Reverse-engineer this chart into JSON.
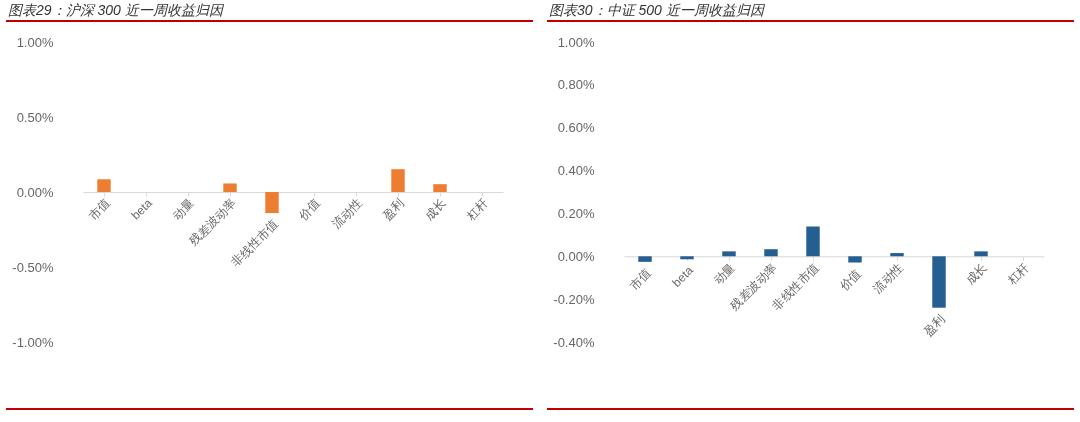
{
  "chart_data": [
    {
      "type": "bar",
      "title": "图表29：沪深 300 近一周收益归因",
      "categories": [
        "市值",
        "beta",
        "动量",
        "残差波动率",
        "非线性市值",
        "价值",
        "流动性",
        "盈利",
        "成长",
        "杠杆"
      ],
      "series": [
        {
          "color": "#ed7d31",
          "values": [
            0.085,
            0,
            0,
            0.057,
            -0.14,
            0,
            0,
            0.152,
            0.052,
            0
          ]
        }
      ],
      "ylim": [
        -1,
        1
      ],
      "yticks": [
        {
          "value": -1,
          "label": "-1.00%"
        },
        {
          "value": -0.5,
          "label": "-0.50%"
        },
        {
          "value": 0,
          "label": "0.00%"
        },
        {
          "value": 0.5,
          "label": "0.50%"
        },
        {
          "value": 1,
          "label": "1.00%"
        }
      ]
    },
    {
      "type": "bar",
      "title": "图表30：中证 500 近一周收益归因",
      "categories": [
        "市值",
        "beta",
        "动量",
        "残差波动率",
        "非线性市值",
        "价值",
        "流动性",
        "盈利",
        "成长",
        "杠杆"
      ],
      "series": [
        {
          "color": "#255e91",
          "values": [
            -0.026,
            -0.014,
            0.023,
            0.033,
            0.139,
            -0.029,
            0.015,
            -0.24,
            0.023,
            0
          ]
        }
      ],
      "ylim": [
        -0.4,
        1
      ],
      "yticks": [
        {
          "value": -0.4,
          "label": "-0.40%"
        },
        {
          "value": -0.2,
          "label": "-0.20%"
        },
        {
          "value": 0,
          "label": "0.00%"
        },
        {
          "value": 0.2,
          "label": "0.20%"
        },
        {
          "value": 0.4,
          "label": "0.40%"
        },
        {
          "value": 0.6,
          "label": "0.60%"
        },
        {
          "value": 0.8,
          "label": "0.80%"
        },
        {
          "value": 1,
          "label": "1.00%"
        }
      ]
    }
  ]
}
